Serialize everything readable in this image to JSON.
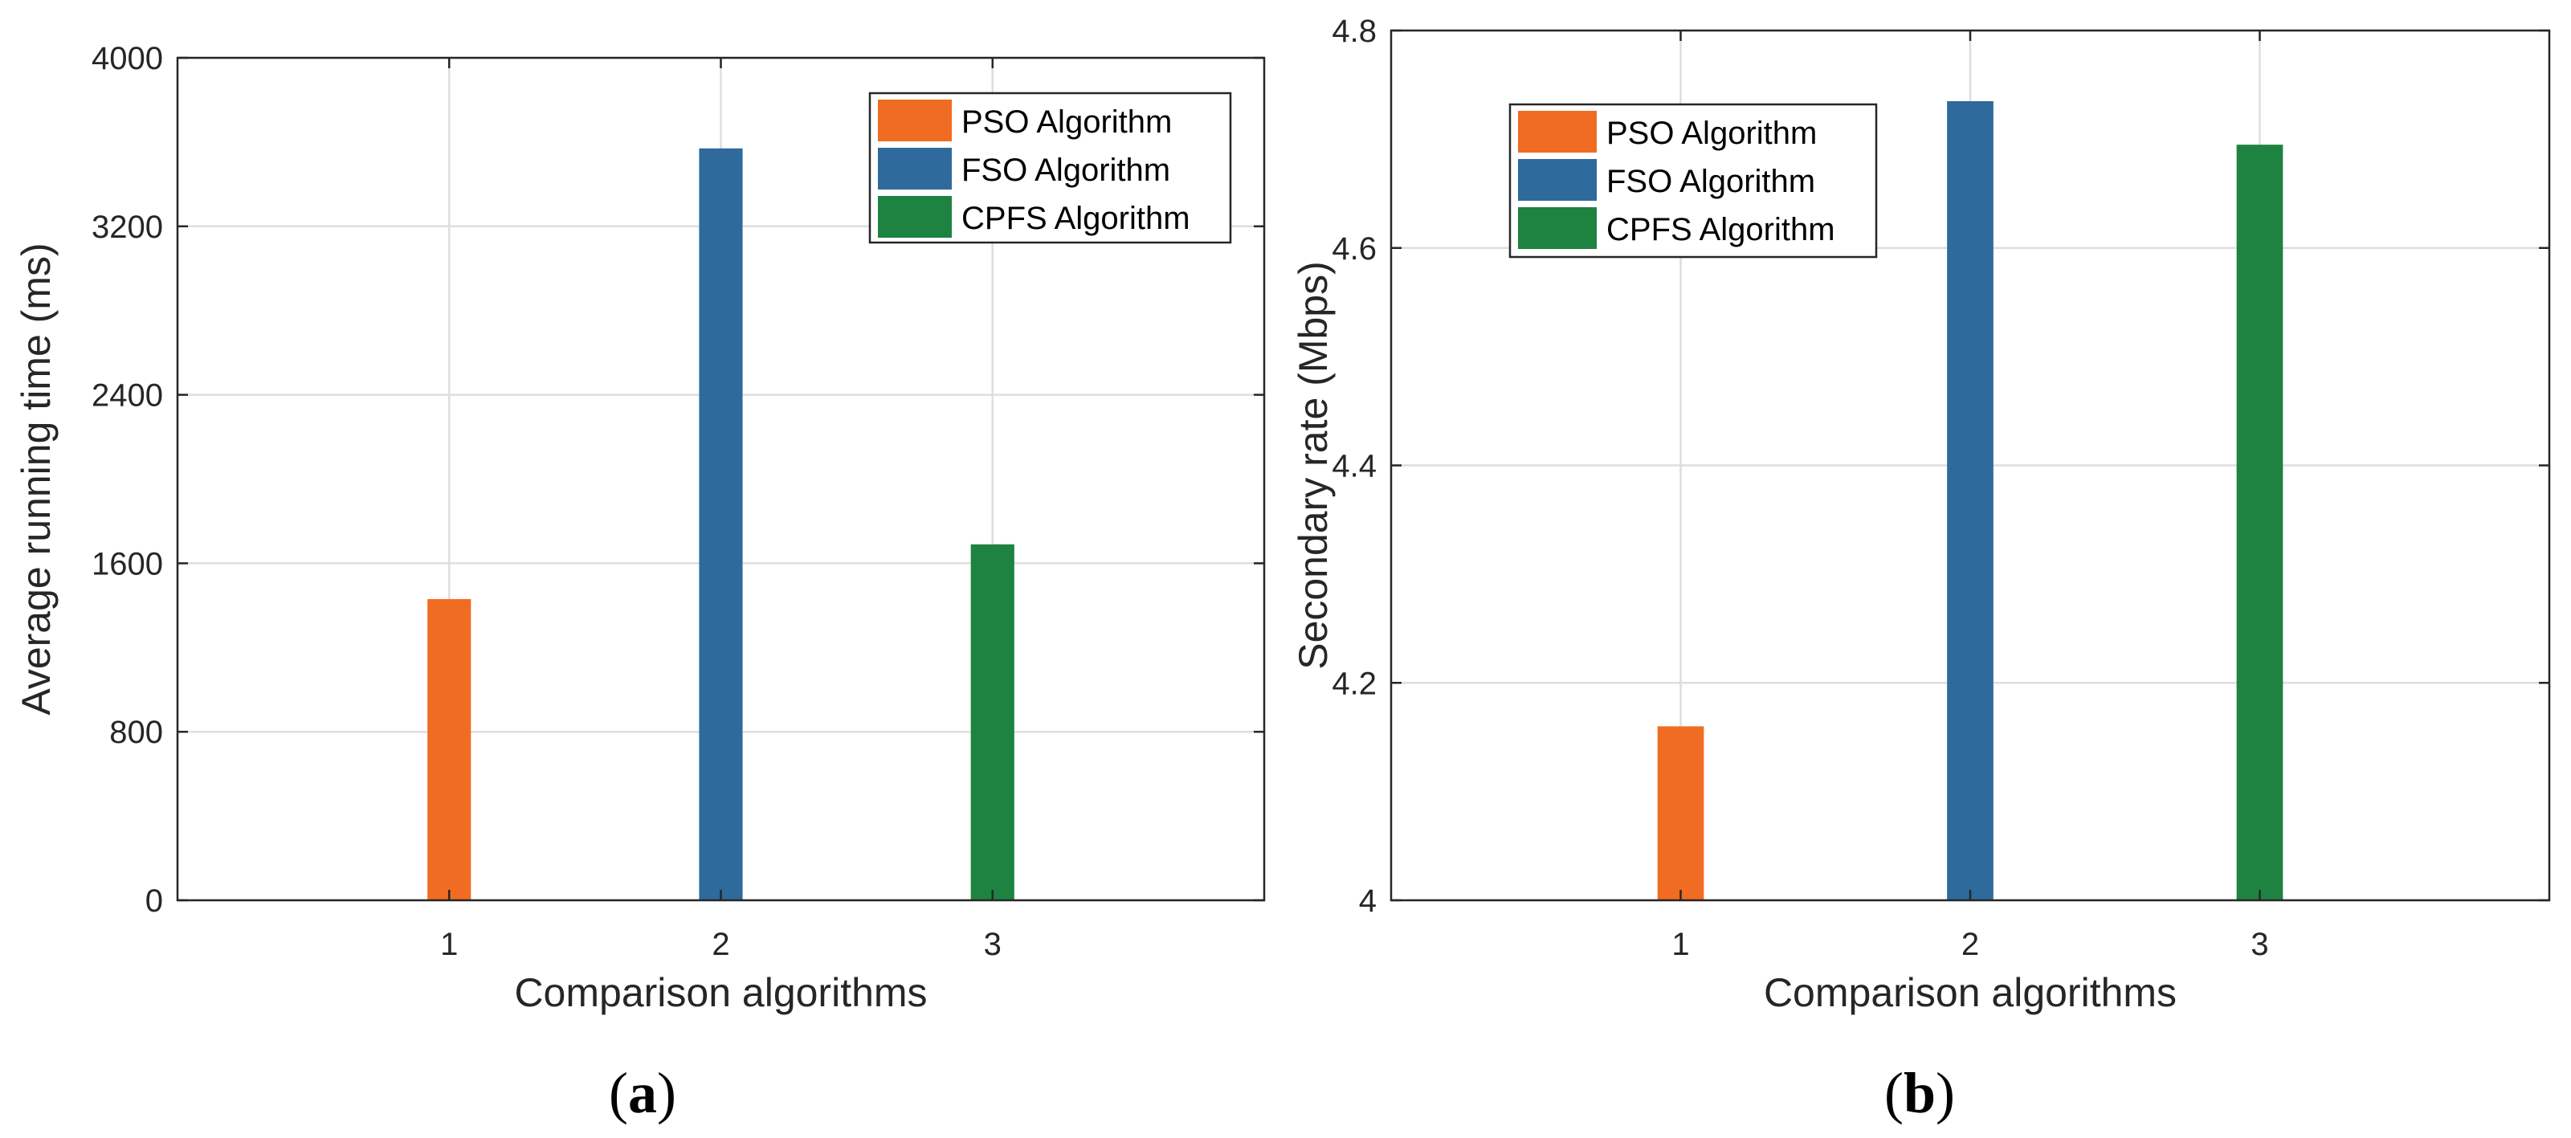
{
  "chart_data": [
    {
      "id": "a",
      "type": "bar",
      "panel_label": "(a)",
      "xlabel": "Comparison algorithms",
      "ylabel": "Average running time (ms)",
      "categories": [
        "1",
        "2",
        "3"
      ],
      "ylim": [
        0,
        4000
      ],
      "yticks": [
        0,
        800,
        1600,
        2400,
        3200,
        4000
      ],
      "xlim": [
        0,
        4
      ],
      "grid": true,
      "legend_position": "top-right",
      "series": [
        {
          "name": "PSO Algorithm",
          "color": "#f06c22",
          "x": 1,
          "value": 1430
        },
        {
          "name": "FSO Algorithm",
          "color": "#2e6a9b",
          "x": 2,
          "value": 3570
        },
        {
          "name": "CPFS Algorithm",
          "color": "#1e8240",
          "x": 3,
          "value": 1690
        }
      ]
    },
    {
      "id": "b",
      "type": "bar",
      "panel_label": "(b)",
      "xlabel": "Comparison algorithms",
      "ylabel": "Secondary rate (Mbps)",
      "categories": [
        "1",
        "2",
        "3"
      ],
      "ylim": [
        4,
        4.8
      ],
      "yticks": [
        4,
        4.2,
        4.4,
        4.6,
        4.8
      ],
      "xlim": [
        0,
        4
      ],
      "grid": true,
      "legend_position": "top-left",
      "series": [
        {
          "name": "PSO Algorithm",
          "color": "#f06c22",
          "x": 1,
          "value": 4.16
        },
        {
          "name": "FSO Algorithm",
          "color": "#2e6a9b",
          "x": 2,
          "value": 4.735
        },
        {
          "name": "CPFS Algorithm",
          "color": "#1e8240",
          "x": 3,
          "value": 4.695
        }
      ]
    }
  ]
}
